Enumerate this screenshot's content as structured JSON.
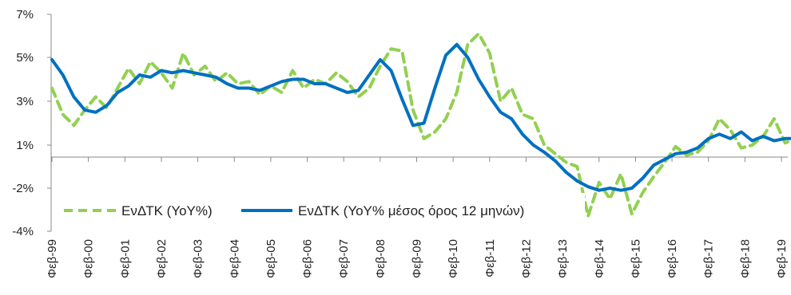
{
  "chart_data": {
    "type": "line",
    "title": "",
    "xlabel": "",
    "ylabel": "",
    "ylim": [
      -4,
      7
    ],
    "y_ticks": [
      {
        "value": 7,
        "label": "7%"
      },
      {
        "value": 5,
        "label": "5%"
      },
      {
        "value": 3,
        "label": "3%"
      },
      {
        "value": 1,
        "label": "1%"
      },
      {
        "value": -2,
        "label": "-2%"
      },
      {
        "value": -4,
        "label": "-4%"
      }
    ],
    "x_tick_labels": [
      "Φεβ-99",
      "Φεβ-00",
      "Φεβ-01",
      "Φεβ-02",
      "Φεβ-03",
      "Φεβ-04",
      "Φεβ-05",
      "Φεβ-06",
      "Φεβ-07",
      "Φεβ-08",
      "Φεβ-09",
      "Φεβ-10",
      "Φεβ-11",
      "Φεβ-12",
      "Φεβ-13",
      "Φεβ-14",
      "Φεβ-15",
      "Φεβ-16",
      "Φεβ-17",
      "Φεβ-18",
      "Φεβ-19"
    ],
    "grid": false,
    "legend_position": "bottom-left inside",
    "series": [
      {
        "name": "ΕνΔΤΚ (YoY%)",
        "color": "#92D050",
        "style": "dashed",
        "x": [
          0,
          0.3,
          0.6,
          0.9,
          1.2,
          1.5,
          1.8,
          2.1,
          2.4,
          2.7,
          3.0,
          3.3,
          3.6,
          3.9,
          4.2,
          4.5,
          4.8,
          5.1,
          5.4,
          5.7,
          6.0,
          6.3,
          6.6,
          6.9,
          7.2,
          7.5,
          7.8,
          8.1,
          8.4,
          8.7,
          9.0,
          9.3,
          9.6,
          9.9,
          10.2,
          10.5,
          10.8,
          11.1,
          11.4,
          11.7,
          12.0,
          12.3,
          12.6,
          12.9,
          13.2,
          13.5,
          13.8,
          14.1,
          14.4,
          14.7,
          15.0,
          15.3,
          15.6,
          15.9,
          16.2,
          16.5,
          16.8,
          17.1,
          17.4,
          17.7,
          18.0,
          18.3,
          18.6,
          18.9,
          19.2,
          19.5,
          19.8,
          20.1,
          20.4
        ],
        "y": [
          3.6,
          2.4,
          1.9,
          2.6,
          3.2,
          2.7,
          3.6,
          4.5,
          3.8,
          4.8,
          4.3,
          3.6,
          5.2,
          4.2,
          4.6,
          3.9,
          4.3,
          3.8,
          3.9,
          3.3,
          3.7,
          3.4,
          4.4,
          3.6,
          4.0,
          3.8,
          4.3,
          3.9,
          3.2,
          3.6,
          4.6,
          5.4,
          5.3,
          2.6,
          1.3,
          1.6,
          2.2,
          3.4,
          5.6,
          6.1,
          5.2,
          3.0,
          3.6,
          2.4,
          2.2,
          1.0,
          0.4,
          -0.2,
          -0.5,
          -3.3,
          -1.6,
          -2.5,
          -1.0,
          -3.2,
          -2.2,
          -1.2,
          -0.2,
          0.9,
          0.3,
          0.5,
          1.2,
          2.2,
          1.7,
          0.8,
          1.0,
          1.4,
          2.2,
          1.1,
          1.3
        ]
      },
      {
        "name": "ΕνΔΤΚ (YoY% μέσος όρος 12 μηνών)",
        "color": "#0070C0",
        "style": "solid",
        "x": [
          0,
          0.3,
          0.6,
          0.9,
          1.2,
          1.5,
          1.8,
          2.1,
          2.4,
          2.7,
          3.0,
          3.3,
          3.6,
          3.9,
          4.2,
          4.5,
          4.8,
          5.1,
          5.4,
          5.7,
          6.0,
          6.3,
          6.6,
          6.9,
          7.2,
          7.5,
          7.8,
          8.1,
          8.4,
          8.7,
          9.0,
          9.3,
          9.6,
          9.9,
          10.2,
          10.5,
          10.8,
          11.1,
          11.4,
          11.7,
          12.0,
          12.3,
          12.6,
          12.9,
          13.2,
          13.5,
          13.8,
          14.1,
          14.4,
          14.7,
          15.0,
          15.3,
          15.6,
          15.9,
          16.2,
          16.5,
          16.8,
          17.1,
          17.4,
          17.7,
          18.0,
          18.3,
          18.6,
          18.9,
          19.2,
          19.5,
          19.8,
          20.1,
          20.4
        ],
        "y": [
          4.9,
          4.2,
          3.2,
          2.6,
          2.5,
          2.8,
          3.4,
          3.7,
          4.2,
          4.1,
          4.4,
          4.3,
          4.4,
          4.3,
          4.2,
          4.1,
          3.8,
          3.6,
          3.6,
          3.5,
          3.7,
          3.9,
          4.0,
          4.0,
          3.8,
          3.8,
          3.6,
          3.4,
          3.5,
          4.2,
          4.9,
          4.4,
          3.1,
          1.9,
          2.0,
          3.6,
          5.1,
          5.6,
          5.0,
          4.0,
          3.2,
          2.5,
          2.2,
          1.5,
          1.0,
          0.5,
          -0.1,
          -0.9,
          -1.5,
          -1.9,
          -2.1,
          -2.0,
          -2.1,
          -2.0,
          -1.3,
          -0.4,
          0.0,
          0.4,
          0.5,
          0.8,
          1.3,
          1.5,
          1.3,
          1.6,
          1.2,
          1.4,
          1.2,
          1.3,
          1.3
        ]
      }
    ]
  }
}
